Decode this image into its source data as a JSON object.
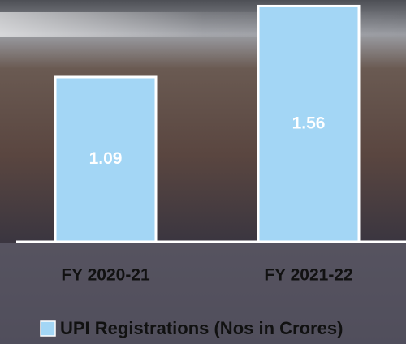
{
  "chart_data": {
    "type": "bar",
    "categories": [
      "FY 2020-21",
      "FY 2021-22"
    ],
    "series": [
      {
        "name": "UPI Registrations (Nos in Crores)",
        "color": "#a3d6f5",
        "values": [
          1.09,
          1.56
        ]
      }
    ],
    "ylim": [
      0,
      1.6
    ]
  }
}
